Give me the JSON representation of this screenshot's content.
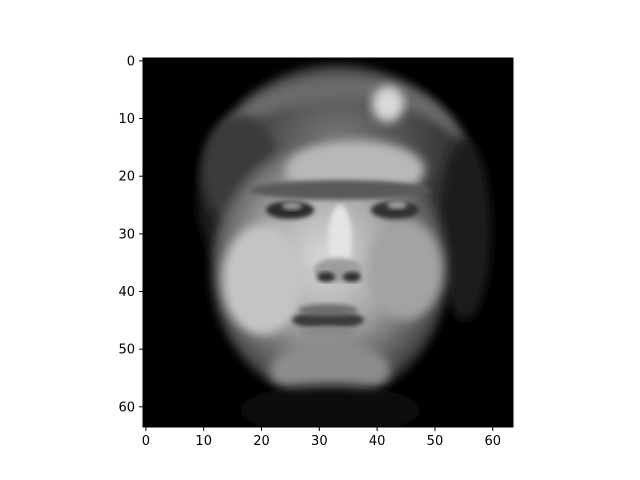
{
  "chart_data": {
    "type": "heatmap",
    "title": "",
    "xlabel": "",
    "ylabel": "",
    "colormap": "gray",
    "image_description": "Grayscale 64x64 face image (upsampled/blurry reconstruction) of a young person with dark hair, looking slightly to the side",
    "image_shape": [
      64,
      64
    ],
    "xlim": [
      -0.5,
      63.5
    ],
    "ylim": [
      63.5,
      -0.5
    ],
    "x_ticks": [
      0,
      10,
      20,
      30,
      40,
      50,
      60
    ],
    "y_ticks": [
      0,
      10,
      20,
      30,
      40,
      50,
      60
    ],
    "x_tick_labels": [
      "0",
      "10",
      "20",
      "30",
      "40",
      "50",
      "60"
    ],
    "y_tick_labels": [
      "0",
      "10",
      "20",
      "30",
      "40",
      "50",
      "60"
    ],
    "grid": false,
    "colors": {
      "frame": "#000000",
      "background": "#ffffff"
    }
  }
}
